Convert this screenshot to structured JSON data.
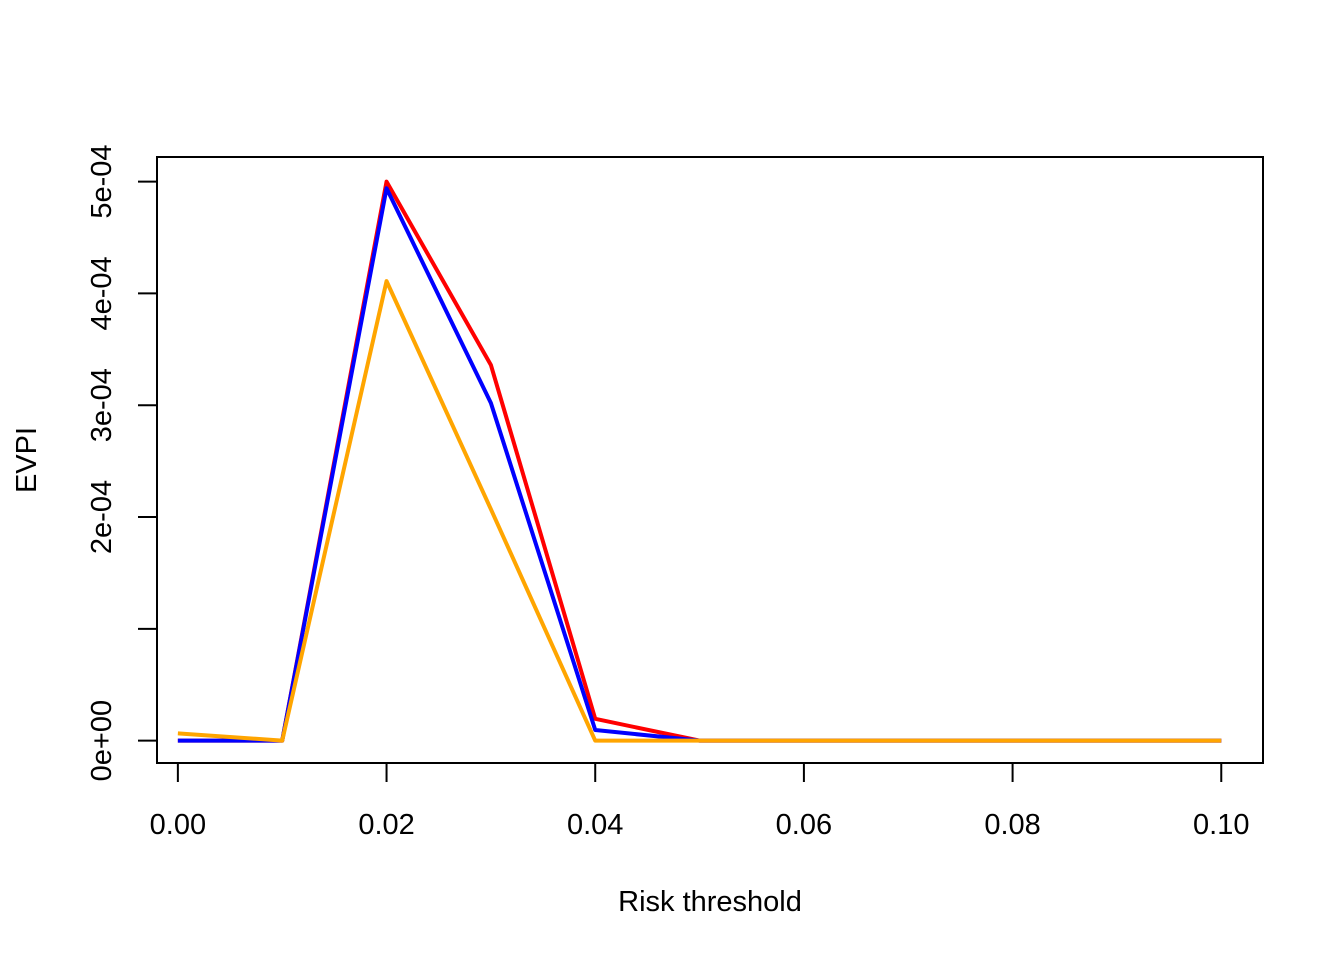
{
  "chart_data": {
    "type": "line",
    "title": "",
    "xlabel": "Risk threshold",
    "ylabel": "EVPI",
    "xlim": [
      -0.002,
      0.104
    ],
    "ylim": [
      -2e-05,
      0.000522
    ],
    "x_ticks": [
      0.0,
      0.02,
      0.04,
      0.06,
      0.08,
      0.1
    ],
    "x_tick_labels": [
      "0.00",
      "0.02",
      "0.04",
      "0.06",
      "0.08",
      "0.10"
    ],
    "y_ticks": [
      0,
      0.0001,
      0.0002,
      0.0003,
      0.0004,
      0.0005
    ],
    "y_tick_labels": [
      "0e+00",
      "",
      "2e-04",
      "3e-04",
      "4e-04",
      "5e-04"
    ],
    "grid": false,
    "legend": "none",
    "x": [
      0.0,
      0.01,
      0.02,
      0.03,
      0.04,
      0.05,
      0.06,
      0.07,
      0.08,
      0.09,
      0.1
    ],
    "series": [
      {
        "color": "#ff0000",
        "values": [
          0.0,
          0.0,
          0.0005,
          0.000336,
          1.95e-05,
          0.0,
          0.0,
          0.0,
          0.0,
          0.0,
          0.0
        ]
      },
      {
        "color": "#0000ff",
        "values": [
          0.0,
          0.0,
          0.000494,
          0.000302,
          9.5e-06,
          0.0,
          0.0,
          0.0,
          0.0,
          0.0,
          0.0
        ]
      },
      {
        "color": "#ffa500",
        "values": [
          6.5e-06,
          0.0,
          0.000411,
          0.000207,
          0.0,
          0.0,
          0.0,
          0.0,
          0.0,
          0.0,
          0.0
        ]
      }
    ]
  }
}
